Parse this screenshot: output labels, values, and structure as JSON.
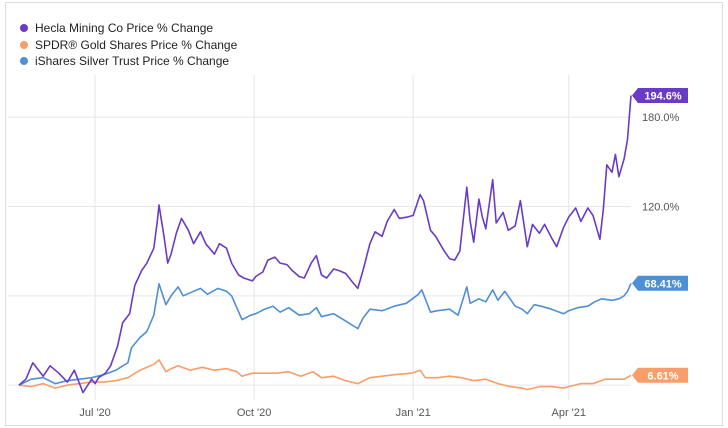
{
  "chart_data": {
    "type": "line",
    "title": "",
    "xlabel": "",
    "ylabel": "",
    "x_range": [
      "2020-05-18",
      "2021-05-07"
    ],
    "ylim": [
      -10,
      205
    ],
    "y_ticks": [
      {
        "value": 120,
        "label": "120.0%"
      },
      {
        "value": 180,
        "label": "180.0%"
      }
    ],
    "x_ticks": [
      {
        "date": "2020-07-01",
        "label": "Jul '20"
      },
      {
        "date": "2020-10-01",
        "label": "Oct '20"
      },
      {
        "date": "2021-01-01",
        "label": "Jan '21"
      },
      {
        "date": "2021-04-01",
        "label": "Apr '21"
      }
    ],
    "grid": true,
    "legend_position": "top-left",
    "series": [
      {
        "name": "Hecla Mining Co Price % Change",
        "color": "#6a3bc6",
        "end_label": "194.6%",
        "points": [
          [
            "2020-05-18",
            0
          ],
          [
            "2020-05-22",
            4
          ],
          [
            "2020-05-26",
            15
          ],
          [
            "2020-06-01",
            6
          ],
          [
            "2020-06-05",
            13
          ],
          [
            "2020-06-10",
            8
          ],
          [
            "2020-06-15",
            2
          ],
          [
            "2020-06-19",
            10
          ],
          [
            "2020-06-24",
            -5
          ],
          [
            "2020-06-29",
            4
          ],
          [
            "2020-07-01",
            1
          ],
          [
            "2020-07-03",
            5
          ],
          [
            "2020-07-07",
            8
          ],
          [
            "2020-07-10",
            13
          ],
          [
            "2020-07-14",
            26
          ],
          [
            "2020-07-17",
            42
          ],
          [
            "2020-07-21",
            48
          ],
          [
            "2020-07-24",
            67
          ],
          [
            "2020-07-28",
            77
          ],
          [
            "2020-07-31",
            82
          ],
          [
            "2020-08-04",
            92
          ],
          [
            "2020-08-06",
            110
          ],
          [
            "2020-08-07",
            121
          ],
          [
            "2020-08-10",
            99
          ],
          [
            "2020-08-12",
            82
          ],
          [
            "2020-08-14",
            88
          ],
          [
            "2020-08-17",
            102
          ],
          [
            "2020-08-20",
            112
          ],
          [
            "2020-08-24",
            104
          ],
          [
            "2020-08-27",
            95
          ],
          [
            "2020-08-31",
            103
          ],
          [
            "2020-09-03",
            95
          ],
          [
            "2020-09-08",
            88
          ],
          [
            "2020-09-11",
            95
          ],
          [
            "2020-09-15",
            92
          ],
          [
            "2020-09-18",
            82
          ],
          [
            "2020-09-22",
            74
          ],
          [
            "2020-09-25",
            72
          ],
          [
            "2020-09-30",
            70
          ],
          [
            "2020-10-02",
            73
          ],
          [
            "2020-10-06",
            76
          ],
          [
            "2020-10-09",
            84
          ],
          [
            "2020-10-13",
            86
          ],
          [
            "2020-10-16",
            82
          ],
          [
            "2020-10-20",
            81
          ],
          [
            "2020-10-23",
            77
          ],
          [
            "2020-10-27",
            73
          ],
          [
            "2020-10-30",
            72
          ],
          [
            "2020-11-03",
            82
          ],
          [
            "2020-11-06",
            87
          ],
          [
            "2020-11-09",
            74
          ],
          [
            "2020-11-12",
            72
          ],
          [
            "2020-11-16",
            78
          ],
          [
            "2020-11-19",
            77
          ],
          [
            "2020-11-23",
            75
          ],
          [
            "2020-11-27",
            69
          ],
          [
            "2020-11-30",
            65
          ],
          [
            "2020-12-03",
            77
          ],
          [
            "2020-12-07",
            95
          ],
          [
            "2020-12-10",
            103
          ],
          [
            "2020-12-14",
            100
          ],
          [
            "2020-12-17",
            110
          ],
          [
            "2020-12-21",
            118
          ],
          [
            "2020-12-24",
            112
          ],
          [
            "2020-12-29",
            113
          ],
          [
            "2021-01-01",
            114
          ],
          [
            "2021-01-05",
            128
          ],
          [
            "2021-01-07",
            124
          ],
          [
            "2021-01-11",
            104
          ],
          [
            "2021-01-14",
            100
          ],
          [
            "2021-01-19",
            90
          ],
          [
            "2021-01-22",
            85
          ],
          [
            "2021-01-25",
            84
          ],
          [
            "2021-01-28",
            90
          ],
          [
            "2021-02-01",
            133
          ],
          [
            "2021-02-03",
            110
          ],
          [
            "2021-02-05",
            96
          ],
          [
            "2021-02-08",
            125
          ],
          [
            "2021-02-10",
            113
          ],
          [
            "2021-02-12",
            105
          ],
          [
            "2021-02-16",
            138
          ],
          [
            "2021-02-18",
            109
          ],
          [
            "2021-02-22",
            116
          ],
          [
            "2021-02-25",
            104
          ],
          [
            "2021-03-01",
            107
          ],
          [
            "2021-03-04",
            124
          ],
          [
            "2021-03-08",
            93
          ],
          [
            "2021-03-11",
            108
          ],
          [
            "2021-03-15",
            102
          ],
          [
            "2021-03-18",
            108
          ],
          [
            "2021-03-22",
            99
          ],
          [
            "2021-03-25",
            93
          ],
          [
            "2021-03-29",
            106
          ],
          [
            "2021-04-01",
            113
          ],
          [
            "2021-04-05",
            119
          ],
          [
            "2021-04-08",
            110
          ],
          [
            "2021-04-12",
            119
          ],
          [
            "2021-04-15",
            114
          ],
          [
            "2021-04-19",
            98
          ],
          [
            "2021-04-21",
            118
          ],
          [
            "2021-04-23",
            148
          ],
          [
            "2021-04-26",
            143
          ],
          [
            "2021-04-28",
            155
          ],
          [
            "2021-04-30",
            140
          ],
          [
            "2021-05-03",
            152
          ],
          [
            "2021-05-05",
            165
          ],
          [
            "2021-05-07",
            194.6
          ]
        ]
      },
      {
        "name": "SPDR® Gold Shares Price % Change",
        "color": "#f79e6a",
        "end_label": "6.61%",
        "points": [
          [
            "2020-05-18",
            0
          ],
          [
            "2020-05-25",
            -1
          ],
          [
            "2020-06-01",
            1
          ],
          [
            "2020-06-08",
            -2
          ],
          [
            "2020-06-15",
            0
          ],
          [
            "2020-06-22",
            1
          ],
          [
            "2020-06-29",
            2
          ],
          [
            "2020-07-06",
            2
          ],
          [
            "2020-07-13",
            3
          ],
          [
            "2020-07-20",
            5
          ],
          [
            "2020-07-27",
            10
          ],
          [
            "2020-07-31",
            12
          ],
          [
            "2020-08-04",
            14
          ],
          [
            "2020-08-07",
            17
          ],
          [
            "2020-08-11",
            9
          ],
          [
            "2020-08-14",
            11
          ],
          [
            "2020-08-18",
            13
          ],
          [
            "2020-08-25",
            10
          ],
          [
            "2020-09-01",
            12
          ],
          [
            "2020-09-08",
            10
          ],
          [
            "2020-09-15",
            11
          ],
          [
            "2020-09-21",
            9
          ],
          [
            "2020-09-24",
            6
          ],
          [
            "2020-09-30",
            8
          ],
          [
            "2020-10-07",
            8
          ],
          [
            "2020-10-14",
            8
          ],
          [
            "2020-10-21",
            9
          ],
          [
            "2020-10-28",
            6
          ],
          [
            "2020-11-04",
            9
          ],
          [
            "2020-11-09",
            5
          ],
          [
            "2020-11-16",
            6
          ],
          [
            "2020-11-23",
            3
          ],
          [
            "2020-11-30",
            1
          ],
          [
            "2020-12-07",
            5
          ],
          [
            "2020-12-14",
            6
          ],
          [
            "2020-12-21",
            7
          ],
          [
            "2020-12-31",
            8
          ],
          [
            "2021-01-05",
            10
          ],
          [
            "2021-01-08",
            5
          ],
          [
            "2021-01-15",
            5
          ],
          [
            "2021-01-22",
            6
          ],
          [
            "2021-01-29",
            5
          ],
          [
            "2021-02-05",
            3
          ],
          [
            "2021-02-12",
            4
          ],
          [
            "2021-02-19",
            1
          ],
          [
            "2021-02-26",
            -1
          ],
          [
            "2021-03-05",
            -2
          ],
          [
            "2021-03-08",
            -3
          ],
          [
            "2021-03-15",
            -1
          ],
          [
            "2021-03-22",
            -1
          ],
          [
            "2021-03-29",
            -2
          ],
          [
            "2021-04-01",
            -1
          ],
          [
            "2021-04-08",
            1
          ],
          [
            "2021-04-15",
            1
          ],
          [
            "2021-04-22",
            4
          ],
          [
            "2021-04-29",
            4
          ],
          [
            "2021-05-03",
            4
          ],
          [
            "2021-05-07",
            6.61
          ]
        ]
      },
      {
        "name": "iShares Silver Trust Price % Change",
        "color": "#4f8fd6",
        "end_label": "68.41%",
        "points": [
          [
            "2020-05-18",
            0
          ],
          [
            "2020-05-25",
            4
          ],
          [
            "2020-06-01",
            5
          ],
          [
            "2020-06-08",
            1
          ],
          [
            "2020-06-15",
            3
          ],
          [
            "2020-06-22",
            4
          ],
          [
            "2020-06-29",
            5
          ],
          [
            "2020-07-06",
            7
          ],
          [
            "2020-07-13",
            10
          ],
          [
            "2020-07-20",
            15
          ],
          [
            "2020-07-22",
            25
          ],
          [
            "2020-07-27",
            32
          ],
          [
            "2020-07-31",
            36
          ],
          [
            "2020-08-04",
            47
          ],
          [
            "2020-08-07",
            68
          ],
          [
            "2020-08-11",
            54
          ],
          [
            "2020-08-14",
            60
          ],
          [
            "2020-08-18",
            66
          ],
          [
            "2020-08-21",
            60
          ],
          [
            "2020-08-25",
            62
          ],
          [
            "2020-08-31",
            65
          ],
          [
            "2020-09-04",
            61
          ],
          [
            "2020-09-10",
            65
          ],
          [
            "2020-09-15",
            63
          ],
          [
            "2020-09-18",
            60
          ],
          [
            "2020-09-21",
            52
          ],
          [
            "2020-09-24",
            44
          ],
          [
            "2020-09-29",
            47
          ],
          [
            "2020-10-02",
            48
          ],
          [
            "2020-10-07",
            51
          ],
          [
            "2020-10-12",
            53
          ],
          [
            "2020-10-16",
            49
          ],
          [
            "2020-10-21",
            52
          ],
          [
            "2020-10-27",
            47
          ],
          [
            "2020-11-02",
            48
          ],
          [
            "2020-11-06",
            52
          ],
          [
            "2020-11-09",
            46
          ],
          [
            "2020-11-16",
            48
          ],
          [
            "2020-11-23",
            43
          ],
          [
            "2020-11-30",
            38
          ],
          [
            "2020-12-03",
            45
          ],
          [
            "2020-12-07",
            51
          ],
          [
            "2020-12-14",
            50
          ],
          [
            "2020-12-21",
            53
          ],
          [
            "2020-12-28",
            55
          ],
          [
            "2021-01-04",
            61
          ],
          [
            "2021-01-06",
            64
          ],
          [
            "2021-01-11",
            49
          ],
          [
            "2021-01-15",
            50
          ],
          [
            "2021-01-22",
            51
          ],
          [
            "2021-01-27",
            47
          ],
          [
            "2021-02-01",
            66
          ],
          [
            "2021-02-03",
            55
          ],
          [
            "2021-02-08",
            58
          ],
          [
            "2021-02-12",
            56
          ],
          [
            "2021-02-16",
            64
          ],
          [
            "2021-02-19",
            57
          ],
          [
            "2021-02-23",
            63
          ],
          [
            "2021-03-01",
            53
          ],
          [
            "2021-03-05",
            51
          ],
          [
            "2021-03-08",
            48
          ],
          [
            "2021-03-12",
            54
          ],
          [
            "2021-03-16",
            53
          ],
          [
            "2021-03-22",
            51
          ],
          [
            "2021-03-29",
            48
          ],
          [
            "2021-04-01",
            50
          ],
          [
            "2021-04-06",
            52
          ],
          [
            "2021-04-12",
            53
          ],
          [
            "2021-04-16",
            56
          ],
          [
            "2021-04-20",
            58
          ],
          [
            "2021-04-26",
            57
          ],
          [
            "2021-04-30",
            58
          ],
          [
            "2021-05-03",
            60
          ],
          [
            "2021-05-05",
            63
          ],
          [
            "2021-05-07",
            68.41
          ]
        ]
      }
    ]
  }
}
